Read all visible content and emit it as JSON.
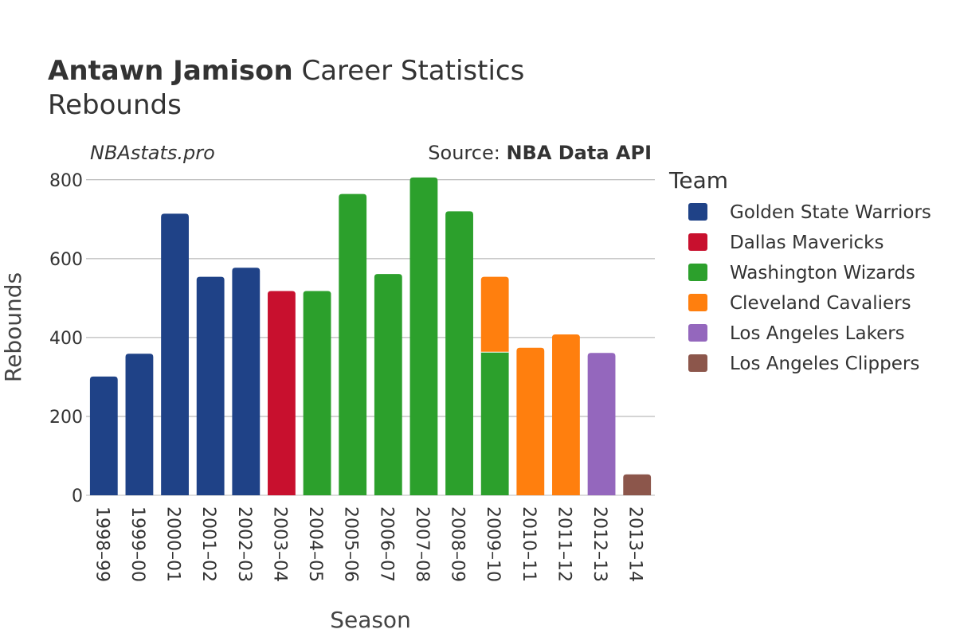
{
  "chart_data": {
    "type": "bar",
    "stacked": true,
    "title": {
      "player": "Antawn Jamison",
      "rest": " Career Statistics",
      "subtitle": "Rebounds"
    },
    "watermark": "NBAstats.pro",
    "source_prefix": "Source: ",
    "source_name": "NBA Data API",
    "xlabel": "Season",
    "ylabel": "Rebounds",
    "ylim": [
      0,
      840
    ],
    "yticks": [
      0,
      200,
      400,
      600,
      800
    ],
    "grid": true,
    "legend_title": "Team",
    "legend_position": "right",
    "categories": [
      "1998–99",
      "1999–00",
      "2000–01",
      "2001–02",
      "2002–03",
      "2003–04",
      "2004–05",
      "2005–06",
      "2006–07",
      "2007–08",
      "2008–09",
      "2009–10",
      "2010–11",
      "2011–12",
      "2012–13",
      "2013–14"
    ],
    "series": [
      {
        "name": "Golden State Warriors",
        "color": "#1f4287",
        "values": [
          301,
          359,
          714,
          554,
          577,
          null,
          null,
          null,
          null,
          null,
          null,
          null,
          null,
          null,
          null,
          null
        ]
      },
      {
        "name": "Dallas Mavericks",
        "color": "#c8102e",
        "values": [
          null,
          null,
          null,
          null,
          null,
          518,
          null,
          null,
          null,
          null,
          null,
          null,
          null,
          null,
          null,
          null
        ]
      },
      {
        "name": "Washington Wizards",
        "color": "#2ca02c",
        "values": [
          null,
          null,
          null,
          null,
          null,
          null,
          518,
          764,
          561,
          806,
          720,
          363,
          null,
          null,
          null,
          null
        ]
      },
      {
        "name": "Cleveland Cavaliers",
        "color": "#ff7f0e",
        "values": [
          null,
          null,
          null,
          null,
          null,
          null,
          null,
          null,
          null,
          null,
          null,
          191,
          374,
          408,
          null,
          null
        ]
      },
      {
        "name": "Los Angeles Lakers",
        "color": "#9467bd",
        "values": [
          null,
          null,
          null,
          null,
          null,
          null,
          null,
          null,
          null,
          null,
          null,
          null,
          null,
          null,
          361,
          null
        ]
      },
      {
        "name": "Los Angeles Clippers",
        "color": "#8c564b",
        "values": [
          null,
          null,
          null,
          null,
          null,
          null,
          null,
          null,
          null,
          null,
          null,
          null,
          null,
          null,
          null,
          53
        ]
      }
    ]
  }
}
